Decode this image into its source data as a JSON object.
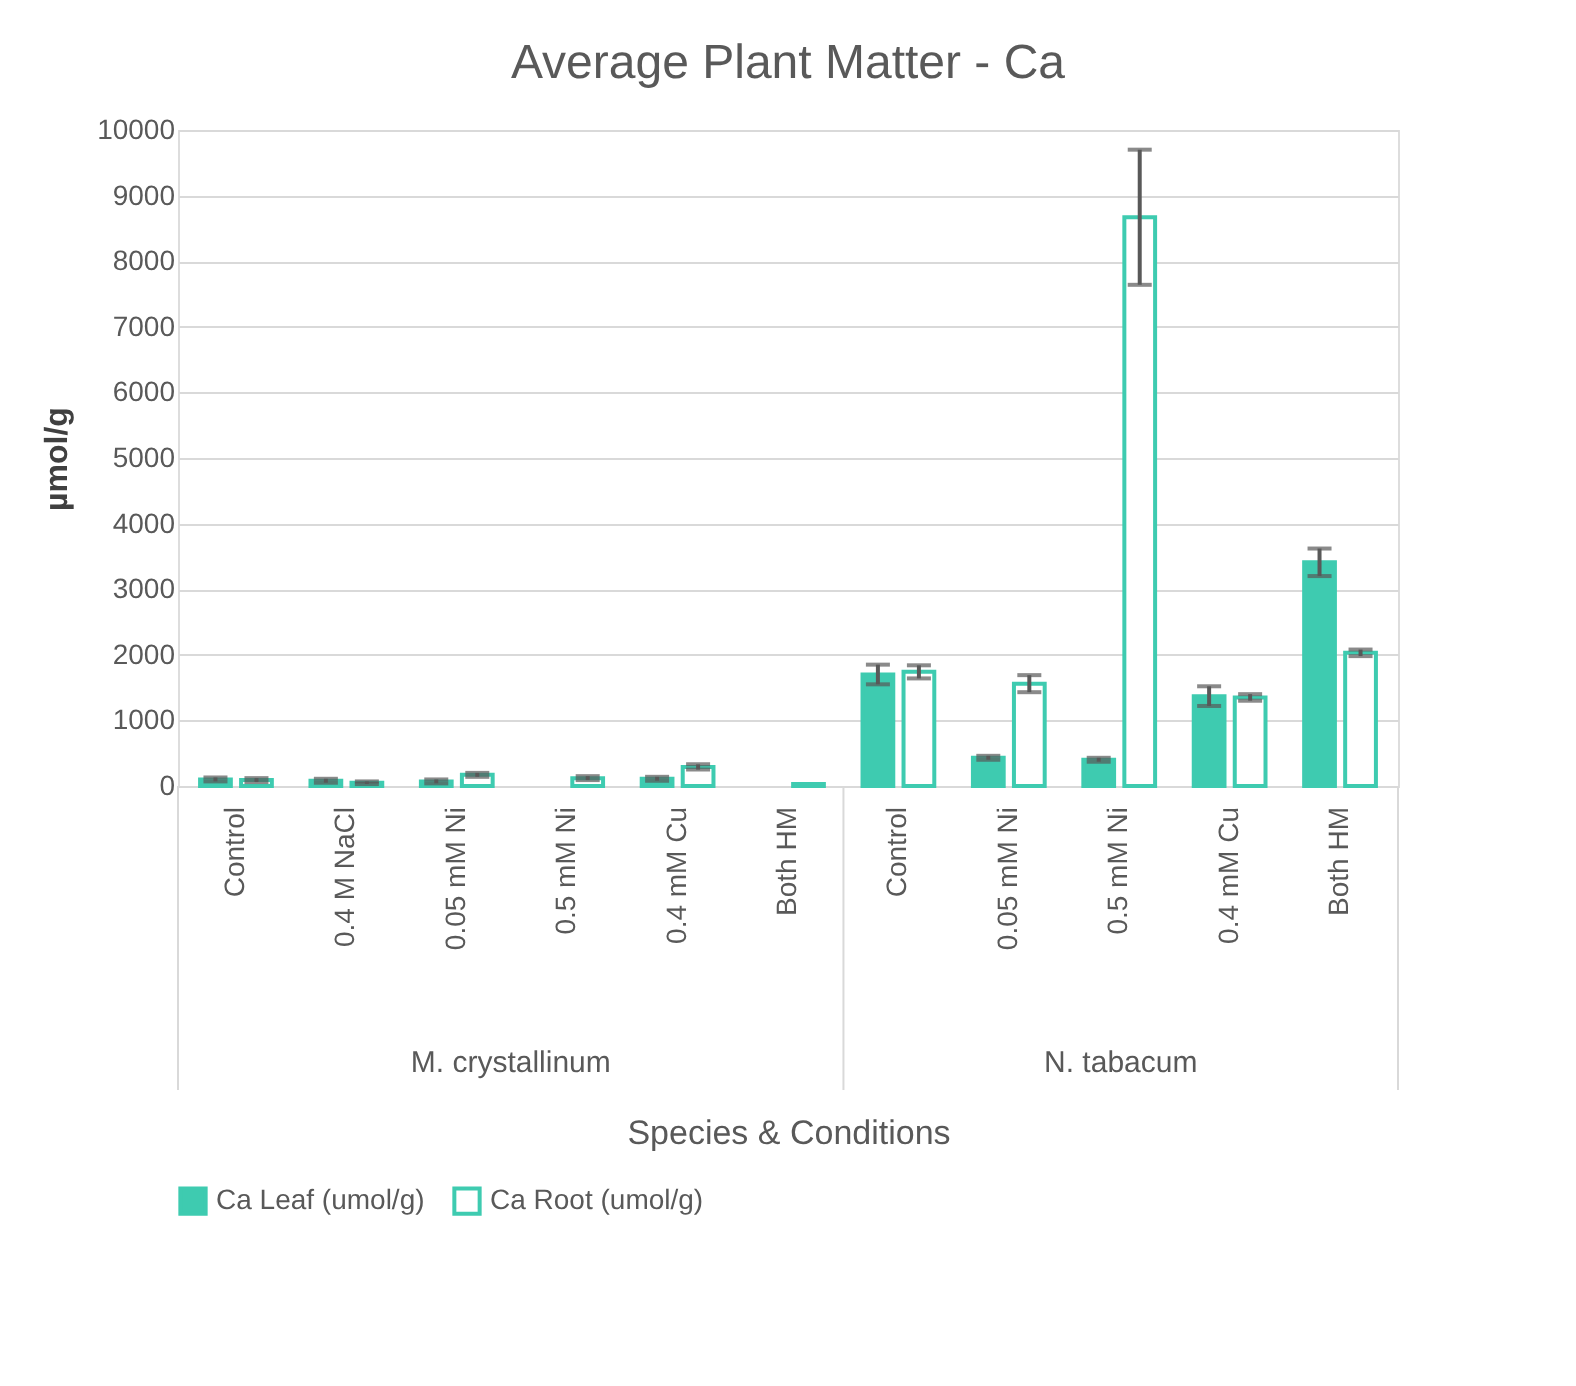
{
  "chart_data": {
    "type": "bar",
    "title": "Average Plant Matter - Ca",
    "xlabel": "Species & Conditions",
    "ylabel": "µmol/g",
    "categories": [
      "Control",
      "0.4 M NaCl",
      "0.05 mM Ni",
      "0.5 mM Ni",
      "0.4 mM Cu",
      "Both HM",
      "Control",
      "0.05 mM Ni",
      "0.5 mM Ni",
      "0.4 mM Cu",
      "Both HM"
    ],
    "series": [
      {
        "name": "Ca Leaf (umol/g)",
        "color": "#3ecbb0",
        "values": [
          100,
          80,
          70,
          null,
          110,
          null,
          1700,
          430,
          400,
          1370,
          3410
        ],
        "errors": [
          30,
          30,
          30,
          null,
          30,
          null,
          150,
          30,
          30,
          150,
          210
        ]
      },
      {
        "name": "Ca Root (umol/g)",
        "color": "#3ecbb0",
        "values": [
          90,
          50,
          170,
          120,
          290,
          30,
          1740,
          1560,
          8670,
          1350,
          2030
        ],
        "errors": [
          30,
          20,
          30,
          30,
          40,
          null,
          100,
          130,
          1030,
          50,
          50
        ]
      }
    ],
    "annotations": [
      "M. crystallinum",
      "N. tabacum"
    ],
    "ylim": [
      0,
      10000
    ],
    "yticks": [
      0,
      1000,
      2000,
      3000,
      4000,
      5000,
      6000,
      7000,
      8000,
      9000,
      10000
    ],
    "grid": "y",
    "legend": "bottom"
  }
}
